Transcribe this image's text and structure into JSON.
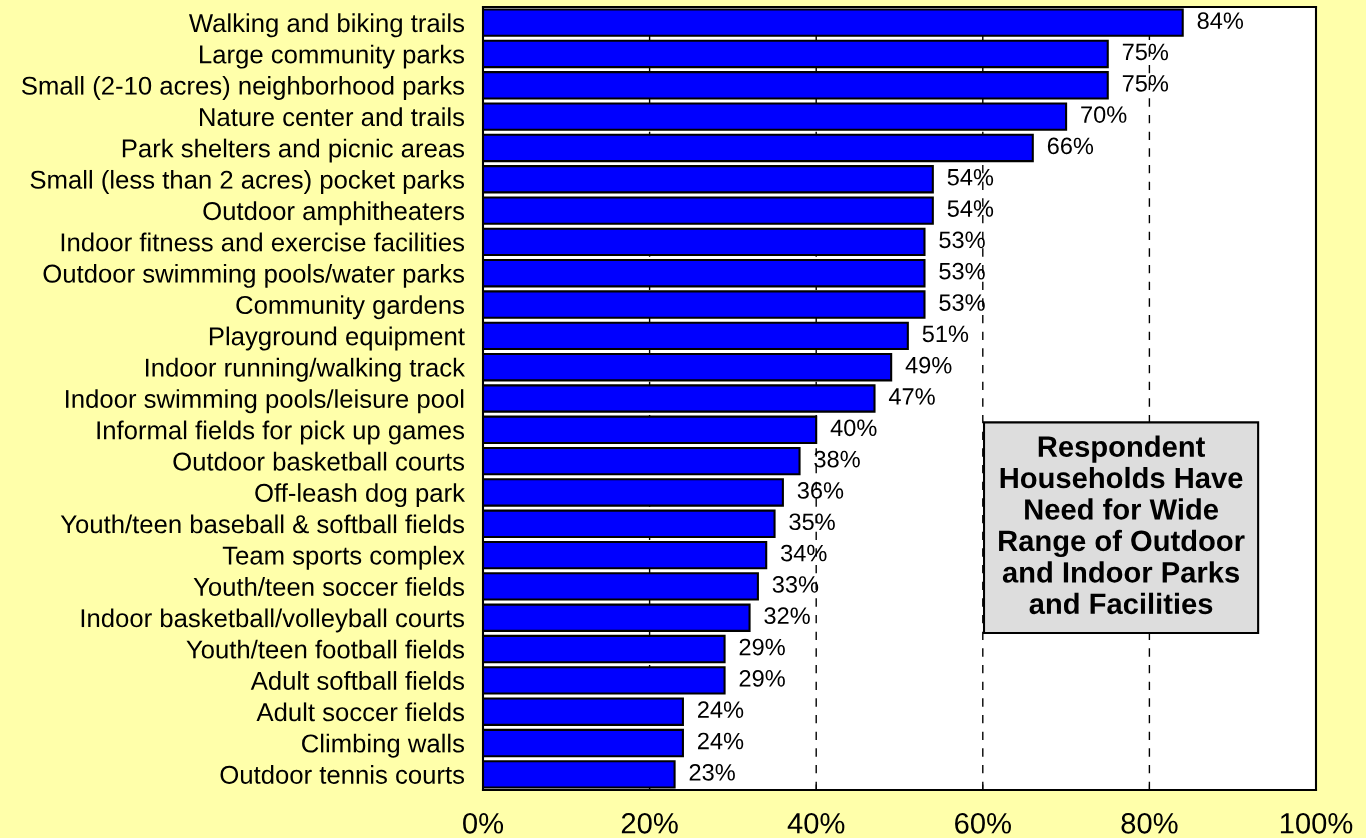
{
  "chart_data": {
    "type": "bar",
    "orientation": "horizontal",
    "categories": [
      "Walking and biking trails",
      "Large community parks",
      "Small (2-10 acres) neighborhood parks",
      "Nature center and trails",
      "Park shelters and picnic areas",
      "Small (less than 2 acres) pocket parks",
      "Outdoor amphitheaters",
      "Indoor fitness and exercise facilities",
      "Outdoor swimming pools/water parks",
      "Community gardens",
      "Playground equipment",
      "Indoor running/walking track",
      "Indoor swimming pools/leisure pool",
      "Informal fields for pick up games",
      "Outdoor basketball courts",
      "Off-leash dog park",
      "Youth/teen baseball & softball fields",
      "Team sports complex",
      "Youth/teen soccer fields",
      "Indoor basketball/volleyball courts",
      "Youth/teen football fields",
      "Adult softball fields",
      "Adult soccer fields",
      "Climbing walls",
      "Outdoor tennis courts"
    ],
    "values": [
      84,
      75,
      75,
      70,
      66,
      54,
      54,
      53,
      53,
      53,
      51,
      49,
      47,
      40,
      38,
      36,
      35,
      34,
      33,
      32,
      29,
      29,
      24,
      24,
      23
    ],
    "value_labels": [
      "84%",
      "75%",
      "75%",
      "70%",
      "66%",
      "54%",
      "54%",
      "53%",
      "53%",
      "53%",
      "51%",
      "49%",
      "47%",
      "40%",
      "38%",
      "36%",
      "35%",
      "34%",
      "33%",
      "32%",
      "29%",
      "29%",
      "24%",
      "24%",
      "23%"
    ],
    "color": "#0000ff",
    "xlim": [
      0,
      100
    ],
    "xticks": [
      {
        "value": 0,
        "label": "0%"
      },
      {
        "value": 20,
        "label": "20%"
      },
      {
        "value": 40,
        "label": "40%"
      },
      {
        "value": 60,
        "label": "60%"
      },
      {
        "value": 80,
        "label": "80%"
      },
      {
        "value": 100,
        "label": "100%"
      }
    ],
    "grid": "x",
    "annotations": [
      "Respondent\nHouseholds Have\nNeed for Wide\nRange of Outdoor\nand Indoor Parks\nand Facilities"
    ]
  }
}
